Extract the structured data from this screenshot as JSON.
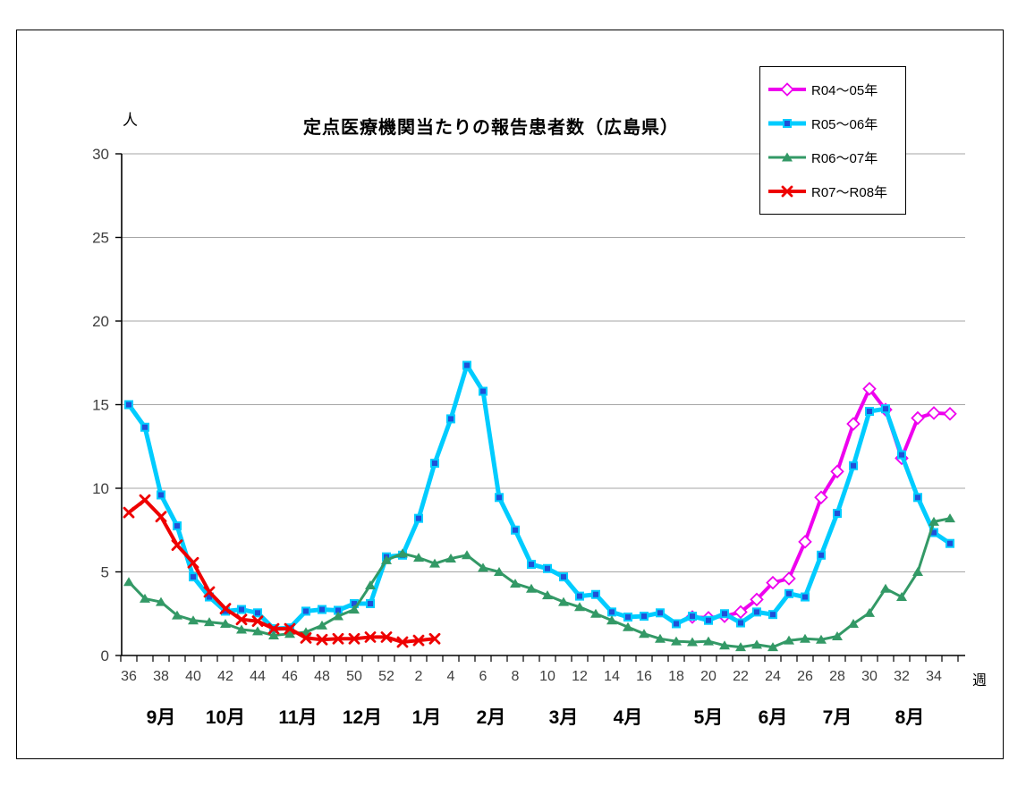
{
  "title": "定点医療機関当たりの報告患者数（広島県）",
  "y_axis_unit": "人",
  "x_axis_unit": "週",
  "chart_data": {
    "type": "line",
    "title": "定点医療機関当たりの報告患者数（広島県）",
    "xlabel": "週",
    "ylabel": "人",
    "ylim": [
      0,
      30
    ],
    "grid": "horizontal",
    "legend_position": "top-right",
    "y_ticks": [
      0,
      5,
      10,
      15,
      20,
      25,
      30
    ],
    "weeks": [
      36,
      37,
      38,
      39,
      40,
      41,
      42,
      43,
      44,
      45,
      46,
      47,
      48,
      49,
      50,
      51,
      52,
      1,
      2,
      3,
      4,
      5,
      6,
      7,
      8,
      9,
      10,
      11,
      12,
      13,
      14,
      15,
      16,
      17,
      18,
      19,
      20,
      21,
      22,
      23,
      24,
      25,
      26,
      27,
      28,
      29,
      30,
      31,
      32,
      33,
      34,
      35
    ],
    "x_tick_labels": [
      "36",
      "38",
      "40",
      "42",
      "44",
      "46",
      "48",
      "50",
      "52",
      "2",
      "4",
      "6",
      "8",
      "10",
      "12",
      "14",
      "16",
      "18",
      "20",
      "22",
      "24",
      "26",
      "28",
      "30",
      "32",
      "34"
    ],
    "months": [
      {
        "label": "9月",
        "i": 2
      },
      {
        "label": "10月",
        "i": 6
      },
      {
        "label": "11月",
        "i": 10.5
      },
      {
        "label": "12月",
        "i": 14.5
      },
      {
        "label": "1月",
        "i": 18.5
      },
      {
        "label": "2月",
        "i": 22.5
      },
      {
        "label": "3月",
        "i": 27
      },
      {
        "label": "4月",
        "i": 31
      },
      {
        "label": "5月",
        "i": 36
      },
      {
        "label": "6月",
        "i": 40
      },
      {
        "label": "7月",
        "i": 44
      },
      {
        "label": "8月",
        "i": 48.5
      }
    ],
    "series": [
      {
        "name": "R04～05年",
        "color": "#EE00EE",
        "marker": "diamond-open",
        "marker_fill": "#FFFFFF",
        "line_width": 4,
        "start_index": 35,
        "start_week": 19,
        "values": [
          2.3,
          2.25,
          2.35,
          2.6,
          3.35,
          4.35,
          4.6,
          6.8,
          9.45,
          11.0,
          13.85,
          15.95,
          14.7,
          11.8,
          14.2,
          14.5,
          14.45
        ]
      },
      {
        "name": "R05～06年",
        "color": "#00CCFF",
        "marker": "square",
        "marker_fill": "#2050D8",
        "line_width": 5,
        "start_index": 0,
        "start_week": 36,
        "values": [
          15.0,
          13.65,
          9.6,
          7.75,
          4.7,
          3.5,
          2.65,
          2.75,
          2.55,
          1.6,
          1.65,
          2.65,
          2.75,
          2.7,
          3.1,
          3.1,
          5.9,
          6.0,
          8.2,
          11.5,
          14.15,
          17.35,
          15.8,
          9.45,
          7.5,
          5.45,
          5.2,
          4.7,
          3.55,
          3.65,
          2.6,
          2.3,
          2.35,
          2.55,
          1.9,
          2.35,
          2.1,
          2.5,
          1.95,
          2.6,
          2.45,
          3.7,
          3.5,
          6.0,
          8.5,
          11.35,
          14.6,
          14.75,
          12.0,
          9.45,
          7.35,
          6.7
        ]
      },
      {
        "name": "R06～07年",
        "color": "#339966",
        "marker": "triangle",
        "marker_fill": "#339966",
        "line_width": 3,
        "start_index": 0,
        "start_week": 36,
        "values": [
          4.4,
          3.4,
          3.2,
          2.4,
          2.1,
          2.0,
          1.9,
          1.55,
          1.45,
          1.2,
          1.3,
          1.4,
          1.8,
          2.35,
          2.75,
          4.2,
          5.7,
          6.1,
          5.85,
          5.5,
          5.8,
          6.0,
          5.25,
          5.0,
          4.3,
          4.0,
          3.6,
          3.2,
          2.9,
          2.5,
          2.1,
          1.7,
          1.3,
          1.0,
          0.85,
          0.8,
          0.85,
          0.6,
          0.5,
          0.65,
          0.5,
          0.9,
          1.0,
          0.95,
          1.15,
          1.9,
          2.55,
          4.0,
          3.5,
          5.0,
          8.0,
          8.2
        ]
      },
      {
        "name": "R07～R08年",
        "color": "#EE0000",
        "marker": "x",
        "marker_fill": "#EE0000",
        "line_width": 4,
        "start_index": 0,
        "start_week": 36,
        "values": [
          8.55,
          9.3,
          8.3,
          6.6,
          5.55,
          3.8,
          2.8,
          2.15,
          2.05,
          1.6,
          1.6,
          1.05,
          0.95,
          1.0,
          1.0,
          1.1,
          1.1,
          0.8,
          0.9,
          1.0
        ]
      }
    ],
    "colors": {
      "gridline": "#A6A6A6",
      "axis": "#000000",
      "tick_label": "#3F3F3F",
      "month_label": "#000000"
    }
  }
}
